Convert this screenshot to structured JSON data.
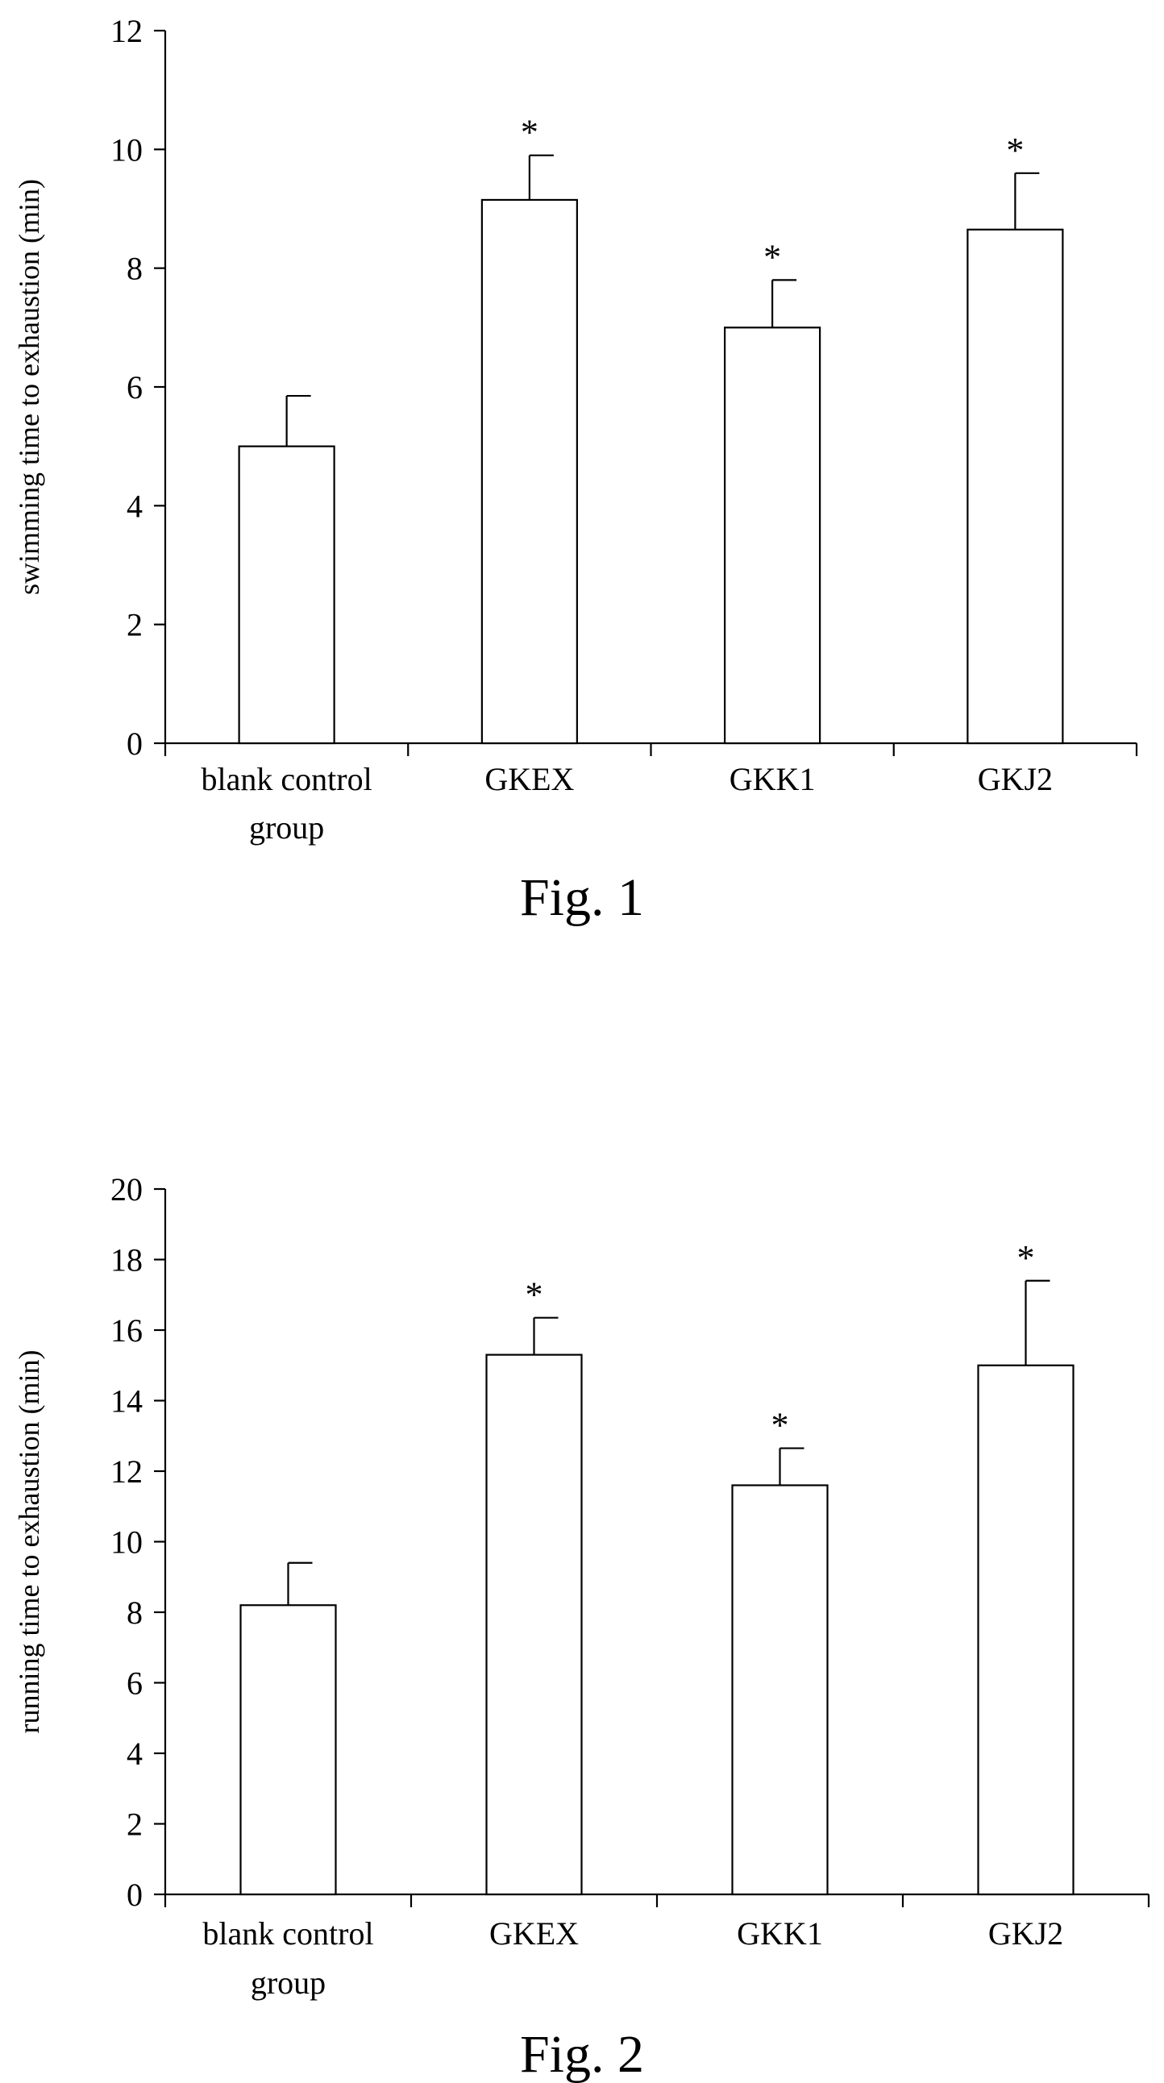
{
  "chart_data": [
    {
      "type": "bar",
      "caption": "Fig. 1",
      "ylabel": "swimming time to exhaustion (min)",
      "xlabel": "",
      "ylim": [
        0,
        12
      ],
      "yticks": [
        0,
        2,
        4,
        6,
        8,
        10,
        12
      ],
      "grid": false,
      "legend": "none",
      "categories": [
        [
          "blank control",
          "group"
        ],
        [
          "GKEX"
        ],
        [
          "GKK1"
        ],
        [
          "GKJ2"
        ]
      ],
      "values": [
        5.0,
        9.15,
        7.0,
        8.65
      ],
      "errors": [
        0.85,
        0.75,
        0.8,
        0.95
      ],
      "significance": [
        "",
        "*",
        "*",
        "*"
      ]
    },
    {
      "type": "bar",
      "caption": "Fig. 2",
      "ylabel": "running time to exhaustion (min)",
      "xlabel": "",
      "ylim": [
        0,
        20
      ],
      "yticks": [
        0,
        2,
        4,
        6,
        8,
        10,
        12,
        14,
        16,
        18,
        20
      ],
      "grid": false,
      "legend": "none",
      "categories": [
        [
          "blank control",
          "group"
        ],
        [
          "GKEX"
        ],
        [
          "GKK1"
        ],
        [
          "GKJ2"
        ]
      ],
      "values": [
        8.2,
        15.3,
        11.6,
        15.0
      ],
      "errors": [
        1.2,
        1.05,
        1.05,
        2.4
      ],
      "significance": [
        "",
        "*",
        "*",
        "*"
      ]
    }
  ]
}
